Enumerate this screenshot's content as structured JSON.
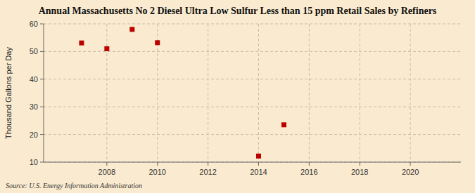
{
  "chart_data": {
    "type": "scatter",
    "title": "Annual Massachusetts No 2 Diesel Ultra Low Sulfur Less than 15 ppm Retail Sales by Refiners",
    "ylabel": "Thousand Gallons per Day",
    "source": "Source: U.S. Energy Information Administration",
    "x": [
      2007,
      2008,
      2009,
      2010,
      2014,
      2015
    ],
    "values": [
      53.1,
      51.0,
      58.0,
      53.2,
      12.2,
      23.5
    ],
    "color": "#bb0000",
    "marker": "square",
    "xlim": [
      2005.5,
      2022
    ],
    "ylim": [
      10,
      60
    ],
    "xticks": [
      2008,
      2010,
      2012,
      2014,
      2016,
      2018,
      2020
    ],
    "yticks": [
      10,
      20,
      30,
      40,
      50,
      60
    ],
    "grid": true
  }
}
